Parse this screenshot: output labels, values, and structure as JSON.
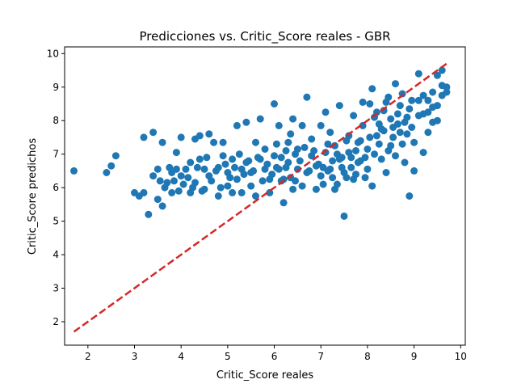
{
  "chart_data": {
    "type": "scatter",
    "title": "Predicciones vs. Critic_Score reales - GBR",
    "xlabel": "Critic_Score reales",
    "ylabel": "Critic_Score predichos",
    "xlim": [
      1.5,
      10.1
    ],
    "ylim": [
      1.3,
      10.2
    ],
    "xticks": [
      2,
      3,
      4,
      5,
      6,
      7,
      8,
      9,
      10
    ],
    "yticks": [
      2,
      3,
      4,
      5,
      6,
      7,
      8,
      9,
      10
    ],
    "xtick_labels": [
      "2",
      "3",
      "4",
      "5",
      "6",
      "7",
      "8",
      "9",
      "10"
    ],
    "ytick_labels": [
      "2",
      "3",
      "4",
      "5",
      "6",
      "7",
      "8",
      "9",
      "10"
    ],
    "grid": false,
    "legend": null,
    "colors": {
      "points": "#1f77b4",
      "reference_line": "#d62728"
    },
    "reference_line": {
      "style": "dashed",
      "x": [
        1.7,
        9.7
      ],
      "y": [
        1.7,
        9.7
      ]
    },
    "series": [
      {
        "points": [
          [
            1.7,
            6.5
          ],
          [
            2.4,
            6.45
          ],
          [
            2.5,
            6.65
          ],
          [
            2.6,
            6.95
          ],
          [
            3.0,
            5.85
          ],
          [
            3.1,
            5.75
          ],
          [
            3.2,
            5.85
          ],
          [
            3.2,
            7.5
          ],
          [
            3.3,
            5.2
          ],
          [
            3.4,
            7.65
          ],
          [
            3.4,
            6.35
          ],
          [
            3.5,
            6.55
          ],
          [
            3.5,
            5.65
          ],
          [
            3.6,
            5.45
          ],
          [
            3.6,
            7.35
          ],
          [
            3.7,
            6.15
          ],
          [
            3.8,
            6.45
          ],
          [
            3.8,
            5.85
          ],
          [
            3.9,
            7.05
          ],
          [
            3.9,
            6.55
          ],
          [
            4.0,
            6.35
          ],
          [
            4.0,
            7.5
          ],
          [
            4.1,
            6.55
          ],
          [
            4.2,
            6.75
          ],
          [
            4.2,
            5.85
          ],
          [
            4.3,
            7.45
          ],
          [
            4.3,
            6.15
          ],
          [
            4.4,
            7.55
          ],
          [
            4.4,
            6.85
          ],
          [
            4.5,
            5.95
          ],
          [
            4.5,
            6.55
          ],
          [
            4.6,
            7.6
          ],
          [
            4.6,
            6.35
          ],
          [
            4.7,
            7.35
          ],
          [
            4.8,
            6.6
          ],
          [
            4.8,
            5.75
          ],
          [
            4.9,
            6.95
          ],
          [
            4.9,
            7.35
          ],
          [
            5.0,
            6.45
          ],
          [
            5.0,
            6.05
          ],
          [
            5.1,
            5.85
          ],
          [
            5.1,
            6.85
          ],
          [
            5.2,
            7.85
          ],
          [
            5.2,
            6.25
          ],
          [
            5.3,
            6.55
          ],
          [
            5.3,
            5.85
          ],
          [
            5.4,
            7.95
          ],
          [
            5.4,
            6.75
          ],
          [
            5.5,
            6.45
          ],
          [
            5.5,
            6.05
          ],
          [
            5.6,
            7.35
          ],
          [
            5.6,
            5.75
          ],
          [
            5.7,
            6.85
          ],
          [
            5.7,
            8.05
          ],
          [
            5.8,
            6.55
          ],
          [
            5.8,
            7.15
          ],
          [
            5.9,
            6.25
          ],
          [
            5.9,
            5.85
          ],
          [
            6.0,
            8.5
          ],
          [
            6.0,
            6.95
          ],
          [
            6.1,
            6.55
          ],
          [
            6.1,
            7.85
          ],
          [
            6.2,
            5.55
          ],
          [
            6.2,
            6.25
          ],
          [
            6.3,
            7.35
          ],
          [
            6.3,
            6.75
          ],
          [
            6.4,
            8.05
          ],
          [
            6.4,
            5.95
          ],
          [
            6.5,
            6.55
          ],
          [
            6.5,
            7.15
          ],
          [
            6.6,
            6.05
          ],
          [
            6.6,
            7.85
          ],
          [
            6.7,
            8.7
          ],
          [
            6.7,
            6.45
          ],
          [
            6.8,
            6.95
          ],
          [
            6.8,
            7.45
          ],
          [
            6.9,
            5.95
          ],
          [
            6.9,
            6.65
          ],
          [
            7.0,
            7.85
          ],
          [
            7.0,
            6.35
          ],
          [
            7.1,
            7.05
          ],
          [
            7.1,
            8.25
          ],
          [
            7.2,
            6.55
          ],
          [
            7.2,
            7.65
          ],
          [
            7.3,
            5.95
          ],
          [
            7.3,
            7.25
          ],
          [
            7.4,
            6.85
          ],
          [
            7.4,
            8.45
          ],
          [
            7.5,
            5.15
          ],
          [
            7.5,
            6.45
          ],
          [
            7.6,
            7.55
          ],
          [
            7.6,
            7.05
          ],
          [
            7.7,
            8.15
          ],
          [
            7.7,
            6.25
          ],
          [
            7.8,
            7.35
          ],
          [
            7.8,
            6.75
          ],
          [
            7.9,
            8.55
          ],
          [
            7.9,
            7.85
          ],
          [
            8.0,
            6.55
          ],
          [
            8.0,
            7.15
          ],
          [
            8.1,
            8.95
          ],
          [
            8.1,
            6.05
          ],
          [
            8.2,
            7.55
          ],
          [
            8.2,
            8.25
          ],
          [
            8.3,
            6.85
          ],
          [
            8.3,
            7.75
          ],
          [
            8.4,
            8.55
          ],
          [
            8.4,
            6.45
          ],
          [
            8.5,
            7.25
          ],
          [
            8.5,
            8.05
          ],
          [
            8.6,
            9.1
          ],
          [
            8.6,
            6.95
          ],
          [
            8.7,
            7.65
          ],
          [
            8.7,
            8.45
          ],
          [
            8.8,
            6.75
          ],
          [
            8.8,
            7.95
          ],
          [
            8.9,
            5.75
          ],
          [
            8.9,
            8.35
          ],
          [
            9.0,
            6.5
          ],
          [
            9.0,
            7.35
          ],
          [
            9.1,
            9.4
          ],
          [
            9.1,
            8.15
          ],
          [
            9.2,
            7.05
          ],
          [
            9.2,
            8.75
          ],
          [
            9.3,
            8.25
          ],
          [
            9.3,
            7.65
          ],
          [
            9.4,
            8.85
          ],
          [
            9.4,
            7.95
          ],
          [
            9.5,
            9.35
          ],
          [
            9.5,
            8.45
          ],
          [
            9.6,
            9.05
          ],
          [
            9.6,
            8.75
          ],
          [
            9.7,
            8.85
          ],
          [
            9.7,
            9.0
          ],
          [
            9.6,
            9.5
          ],
          [
            9.5,
            8.0
          ],
          [
            9.4,
            8.4
          ],
          [
            9.3,
            8.6
          ],
          [
            9.2,
            8.2
          ],
          [
            9.1,
            8.6
          ],
          [
            6.05,
            6.6
          ],
          [
            6.15,
            6.9
          ],
          [
            6.25,
            7.1
          ],
          [
            6.35,
            6.3
          ],
          [
            6.45,
            7.0
          ],
          [
            6.55,
            6.8
          ],
          [
            6.65,
            7.2
          ],
          [
            6.75,
            6.5
          ],
          [
            6.85,
            7.1
          ],
          [
            6.95,
            6.7
          ],
          [
            7.05,
            6.6
          ],
          [
            7.15,
            7.3
          ],
          [
            7.25,
            6.8
          ],
          [
            7.35,
            7.0
          ],
          [
            7.45,
            6.6
          ],
          [
            7.55,
            7.4
          ],
          [
            7.65,
            6.9
          ],
          [
            7.75,
            7.1
          ],
          [
            7.85,
            7.4
          ],
          [
            7.95,
            6.9
          ],
          [
            8.05,
            7.5
          ],
          [
            8.15,
            7.0
          ],
          [
            8.25,
            7.3
          ],
          [
            8.35,
            7.7
          ],
          [
            8.45,
            7.1
          ],
          [
            8.55,
            7.5
          ],
          [
            8.65,
            7.9
          ],
          [
            8.75,
            7.3
          ],
          [
            8.85,
            7.6
          ],
          [
            8.95,
            7.8
          ],
          [
            5.55,
            6.5
          ],
          [
            5.65,
            6.9
          ],
          [
            5.75,
            6.2
          ],
          [
            5.85,
            6.7
          ],
          [
            5.95,
            6.4
          ],
          [
            6.05,
            7.3
          ],
          [
            6.15,
            6.2
          ],
          [
            6.25,
            6.6
          ],
          [
            6.35,
            7.6
          ],
          [
            6.45,
            6.2
          ],
          [
            7.05,
            6.1
          ],
          [
            7.15,
            6.5
          ],
          [
            7.25,
            6.3
          ],
          [
            7.35,
            6.1
          ],
          [
            7.45,
            6.9
          ],
          [
            7.55,
            6.3
          ],
          [
            7.65,
            6.6
          ],
          [
            7.75,
            6.4
          ],
          [
            7.85,
            6.8
          ],
          [
            7.95,
            6.3
          ],
          [
            8.05,
            8.5
          ],
          [
            8.15,
            8.1
          ],
          [
            8.25,
            7.9
          ],
          [
            8.35,
            8.3
          ],
          [
            8.45,
            8.7
          ],
          [
            8.55,
            7.8
          ],
          [
            8.65,
            8.2
          ],
          [
            8.75,
            8.8
          ],
          [
            8.85,
            8.1
          ],
          [
            8.95,
            8.6
          ],
          [
            4.15,
            6.3
          ],
          [
            4.25,
            6.0
          ],
          [
            4.35,
            6.6
          ],
          [
            4.55,
            6.9
          ],
          [
            4.65,
            6.2
          ],
          [
            4.75,
            6.5
          ],
          [
            4.85,
            6.0
          ],
          [
            4.95,
            6.7
          ],
          [
            5.05,
            6.3
          ],
          [
            5.15,
            6.6
          ],
          [
            5.25,
            7.0
          ],
          [
            5.35,
            6.4
          ],
          [
            5.45,
            6.8
          ],
          [
            3.55,
            6.2
          ],
          [
            3.65,
            6.0
          ],
          [
            3.75,
            6.6
          ],
          [
            3.85,
            6.2
          ],
          [
            3.95,
            5.9
          ],
          [
            4.05,
            6.1
          ],
          [
            4.45,
            5.9
          ]
        ]
      }
    ]
  }
}
